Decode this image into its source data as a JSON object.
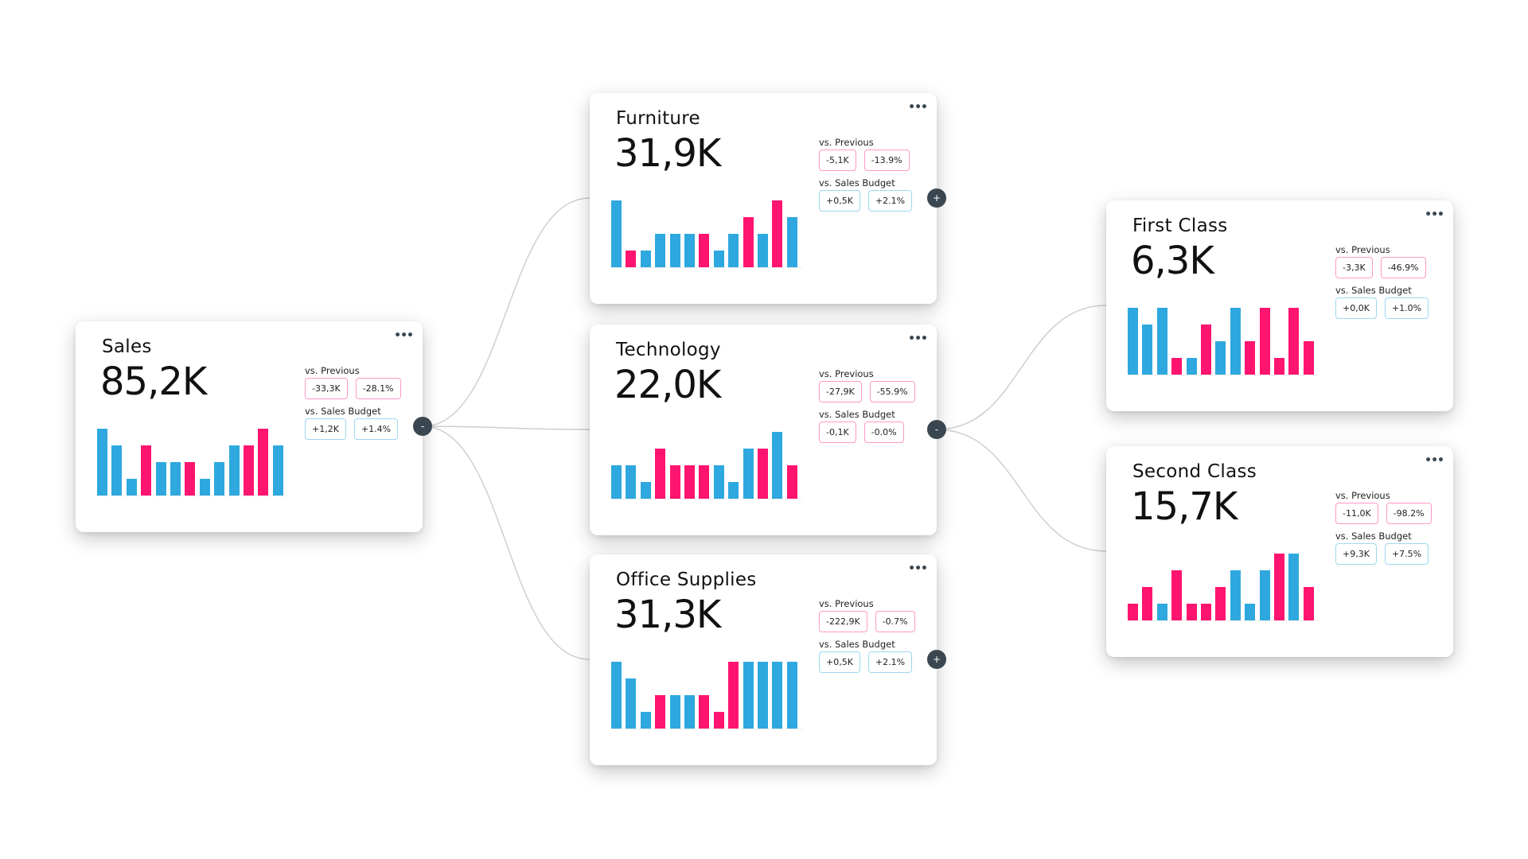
{
  "colors": {
    "positive_bar": "#2ea8df",
    "negative_bar": "#ff1470",
    "connector": "#cfcfcf",
    "toggle": "#3a4750"
  },
  "labels": {
    "vs_previous": "vs. Previous",
    "vs_budget": "vs. Sales Budget",
    "menu": "•••"
  },
  "cards": [
    {
      "id": "sales",
      "title": "Sales",
      "value": "85,2K",
      "prev": [
        "-33,3K",
        "-28.1%"
      ],
      "prev_sign": "neg",
      "budget": [
        "+1,2K",
        "+1.4%"
      ],
      "budget_sign": "pos",
      "toggle": "-",
      "bars": [
        4,
        3,
        1,
        3,
        2,
        2,
        2,
        1,
        2,
        3,
        3,
        4,
        3
      ],
      "colors": [
        "b",
        "b",
        "b",
        "p",
        "b",
        "b",
        "p",
        "b",
        "b",
        "b",
        "p",
        "p",
        "b"
      ]
    },
    {
      "id": "furniture",
      "title": "Furniture",
      "value": "31,9K",
      "prev": [
        "-5,1K",
        "-13.9%"
      ],
      "prev_sign": "neg",
      "budget": [
        "+0,5K",
        "+2.1%"
      ],
      "budget_sign": "pos",
      "toggle": "+",
      "bars": [
        4,
        1,
        1,
        2,
        2,
        2,
        2,
        1,
        2,
        3,
        2,
        4,
        3
      ],
      "colors": [
        "b",
        "p",
        "b",
        "b",
        "b",
        "b",
        "p",
        "b",
        "b",
        "p",
        "b",
        "p",
        "b"
      ]
    },
    {
      "id": "technology",
      "title": "Technology",
      "value": "22,0K",
      "prev": [
        "-27,9K",
        "-55.9%"
      ],
      "prev_sign": "neg",
      "budget": [
        "-0,1K",
        "-0.0%"
      ],
      "budget_sign": "neg",
      "toggle": "-",
      "bars": [
        2,
        2,
        1,
        3,
        2,
        2,
        2,
        2,
        1,
        3,
        3,
        4,
        2
      ],
      "colors": [
        "b",
        "b",
        "b",
        "p",
        "p",
        "p",
        "p",
        "b",
        "b",
        "b",
        "p",
        "b",
        "p"
      ]
    },
    {
      "id": "office-supplies",
      "title": "Office Supplies",
      "value": "31,3K",
      "prev": [
        "-222,9K",
        "-0.7%"
      ],
      "prev_sign": "neg",
      "budget": [
        "+0,5K",
        "+2.1%"
      ],
      "budget_sign": "pos",
      "toggle": "+",
      "bars": [
        4,
        3,
        1,
        2,
        2,
        2,
        2,
        1,
        4,
        4,
        4,
        4,
        4
      ],
      "colors": [
        "b",
        "b",
        "b",
        "p",
        "b",
        "b",
        "p",
        "p",
        "p",
        "b",
        "b",
        "b",
        "b"
      ]
    },
    {
      "id": "first-class",
      "title": "First Class",
      "value": "6,3K",
      "prev": [
        "-3,3K",
        "-46.9%"
      ],
      "prev_sign": "neg",
      "budget": [
        "+0,0K",
        "+1.0%"
      ],
      "budget_sign": "pos",
      "toggle": null,
      "bars": [
        4,
        3,
        4,
        1,
        1,
        3,
        2,
        4,
        2,
        4,
        1,
        4,
        2
      ],
      "colors": [
        "b",
        "b",
        "b",
        "p",
        "b",
        "p",
        "b",
        "b",
        "p",
        "p",
        "p",
        "p",
        "p"
      ]
    },
    {
      "id": "second-class",
      "title": "Second Class",
      "value": "15,7K",
      "prev": [
        "-11,0K",
        "-98.2%"
      ],
      "prev_sign": "neg",
      "budget": [
        "+9,3K",
        "+7.5%"
      ],
      "budget_sign": "pos",
      "toggle": null,
      "bars": [
        1,
        2,
        1,
        3,
        1,
        1,
        2,
        3,
        1,
        3,
        4,
        4,
        2
      ],
      "colors": [
        "p",
        "p",
        "b",
        "p",
        "p",
        "p",
        "p",
        "b",
        "b",
        "b",
        "p",
        "b",
        "p"
      ]
    }
  ]
}
